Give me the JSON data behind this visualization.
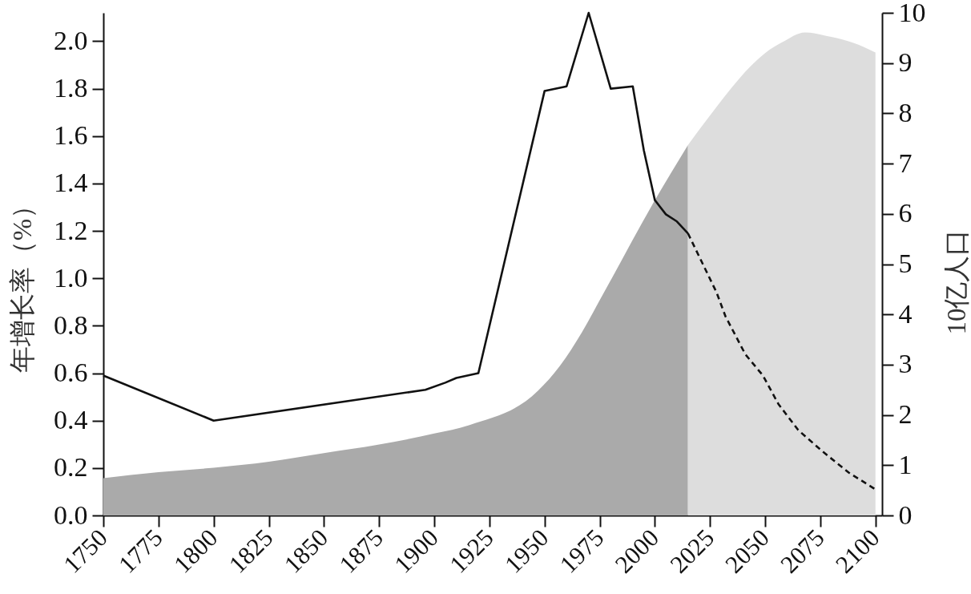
{
  "chart_data": {
    "type": "line",
    "ylabel": "年增长率（%）",
    "y2label": "10亿人口",
    "xlim": [
      1750,
      2103
    ],
    "xticks": [
      1750,
      1775,
      1800,
      1825,
      1850,
      1875,
      1900,
      1925,
      1950,
      1975,
      2000,
      2025,
      2050,
      2075,
      2100
    ],
    "ylim": [
      0,
      2.12
    ],
    "yticks": [
      {
        "value": 0,
        "label": "0.0"
      },
      0.2,
      0.4,
      0.6,
      0.8,
      {
        "value": 1,
        "label": "1.0"
      },
      1.2,
      1.4,
      1.6,
      1.8,
      {
        "value": 2,
        "label": "2.0"
      }
    ],
    "y2lim": [
      0,
      10
    ],
    "y2ticks": [
      0,
      1,
      2,
      3,
      4,
      5,
      6,
      7,
      8,
      9,
      10
    ],
    "grid": false,
    "series": [
      {
        "type": "area",
        "axis": "y2",
        "color": "#aaaaaa",
        "x": [
          1750,
          1775,
          1800,
          1825,
          1850,
          1875,
          1900,
          1916,
          1947,
          1957,
          1967,
          1977,
          2000,
          2015
        ],
        "values": [
          0.74,
          0.86,
          0.95,
          1.07,
          1.24,
          1.41,
          1.63,
          1.8,
          2.48,
          2.98,
          3.65,
          4.44,
          6.27,
          7.37
        ]
      },
      {
        "type": "area",
        "axis": "y2",
        "color": "#dddddd",
        "x": [
          2015,
          2028,
          2035,
          2043,
          2050,
          2058,
          2068,
          2080,
          2090,
          2100
        ],
        "values": [
          7.37,
          8.13,
          8.52,
          8.92,
          9.2,
          9.42,
          9.61,
          9.52,
          9.4,
          9.21
        ]
      },
      {
        "color": "#111111",
        "line_style": "solid",
        "x": [
          1750,
          1800,
          1896,
          1905,
          1910,
          1920,
          1950,
          1960,
          1970,
          1980,
          1990,
          1995,
          2000,
          2005,
          2010,
          2015
        ],
        "values": [
          0.59,
          0.4,
          0.53,
          0.56,
          0.58,
          0.6,
          1.79,
          1.81,
          2.12,
          1.8,
          1.81,
          1.54,
          1.33,
          1.27,
          1.24,
          1.19
        ]
      },
      {
        "color": "#111111",
        "line_style": "dashed",
        "x": [
          2015,
          2028,
          2032,
          2041,
          2049,
          2056,
          2065,
          2076,
          2088,
          2100
        ],
        "values": [
          1.19,
          0.94,
          0.84,
          0.68,
          0.59,
          0.47,
          0.36,
          0.27,
          0.18,
          0.11
        ]
      }
    ]
  }
}
